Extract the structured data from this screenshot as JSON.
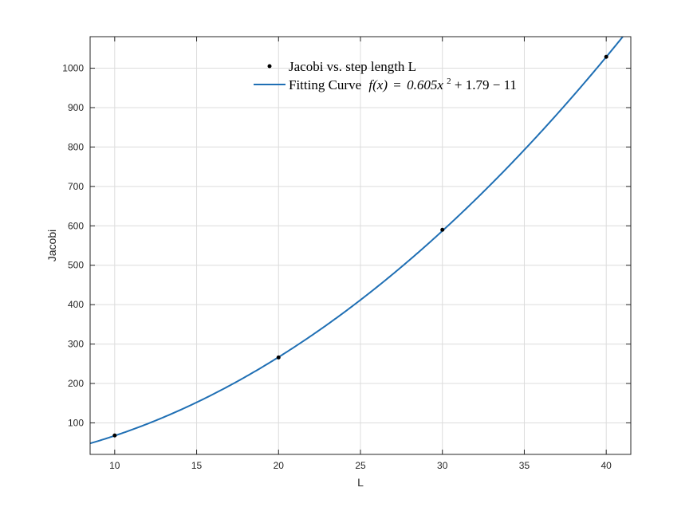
{
  "chart_data": {
    "type": "scatter",
    "title": "",
    "xlabel": "L",
    "ylabel": "Jacobi",
    "xlim": [
      8.5,
      41.5
    ],
    "ylim": [
      20,
      1080
    ],
    "xticks": [
      10,
      15,
      20,
      25,
      30,
      35,
      40
    ],
    "yticks": [
      100,
      200,
      300,
      400,
      500,
      600,
      700,
      800,
      900,
      1000
    ],
    "grid": true,
    "legend_position": "top-center",
    "series": [
      {
        "name": "Jacobi vs. step length L",
        "kind": "scatter",
        "color": "#000000",
        "x": [
          10,
          20,
          30,
          40
        ],
        "y": [
          68,
          266,
          590,
          1029
        ]
      },
      {
        "name": "Fitting Curve",
        "kind": "line",
        "color": "#1f6fb4",
        "equation_prefix": "f(x)",
        "equation_body": "0.605x",
        "equation_exponent": "2",
        "equation_tail": " + 1.79 − 11",
        "coefficients": [
          0.605,
          1.79,
          -11
        ],
        "x_range": [
          8.5,
          41.5
        ]
      }
    ]
  }
}
